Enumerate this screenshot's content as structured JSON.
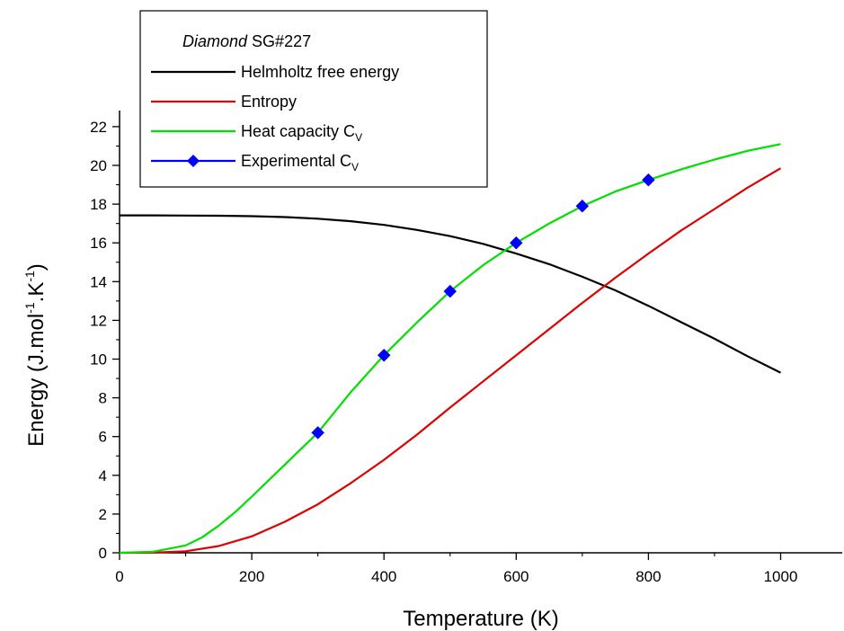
{
  "chart_data": {
    "type": "line",
    "xlabel": "Temperature (K)",
    "ylabel": {
      "main": "Energy (J.mol",
      "sup1": "-1",
      "mid": ".K",
      "sup2": "-1",
      "end": ")"
    },
    "xlim": [
      0,
      1100
    ],
    "ylim": [
      0,
      22.5
    ],
    "x_ticks": [
      "0",
      "200",
      "400",
      "600",
      "800",
      "1000"
    ],
    "y_ticks": [
      "0",
      "2",
      "4",
      "6",
      "8",
      "10",
      "12",
      "14",
      "16",
      "18",
      "20",
      "22"
    ],
    "grid": false,
    "legend": {
      "position": "top-left",
      "title_italic": "Diamond",
      "title_rest": " SG#227",
      "entries": [
        {
          "label": "Helmholtz free energy",
          "sub": ""
        },
        {
          "label": "Entropy",
          "sub": ""
        },
        {
          "label": "Heat capacity C",
          "sub": "V"
        },
        {
          "label": "Experimental  C",
          "sub": "V"
        }
      ]
    },
    "series": [
      {
        "name": "Helmholtz free energy",
        "color": "#000000",
        "marker": "none",
        "x": [
          0,
          50,
          100,
          150,
          200,
          250,
          300,
          350,
          400,
          450,
          500,
          550,
          600,
          650,
          700,
          750,
          800,
          850,
          900,
          950,
          1000
        ],
        "y": [
          17.42,
          17.42,
          17.41,
          17.4,
          17.38,
          17.33,
          17.25,
          17.12,
          16.93,
          16.67,
          16.35,
          15.95,
          15.45,
          14.9,
          14.25,
          13.55,
          12.75,
          11.9,
          11.05,
          10.15,
          9.3
        ]
      },
      {
        "name": "Entropy",
        "color": "#e00000",
        "marker": "none",
        "x": [
          0,
          50,
          100,
          150,
          200,
          250,
          300,
          350,
          400,
          450,
          500,
          550,
          600,
          650,
          700,
          750,
          800,
          850,
          900,
          950,
          1000
        ],
        "y": [
          0,
          0.01,
          0.08,
          0.35,
          0.85,
          1.6,
          2.5,
          3.6,
          4.8,
          6.1,
          7.5,
          8.85,
          10.2,
          11.55,
          12.9,
          14.2,
          15.45,
          16.65,
          17.75,
          18.85,
          19.85
        ]
      },
      {
        "name": "Heat capacity C_V",
        "color": "#00e000",
        "marker": "none",
        "x": [
          0,
          50,
          100,
          125,
          150,
          175,
          200,
          250,
          300,
          350,
          400,
          450,
          500,
          550,
          600,
          650,
          700,
          750,
          800,
          850,
          900,
          950,
          1000
        ],
        "y": [
          0,
          0.05,
          0.38,
          0.8,
          1.4,
          2.1,
          2.9,
          4.55,
          6.2,
          8.3,
          10.2,
          11.9,
          13.5,
          14.85,
          16.0,
          17.0,
          17.9,
          18.65,
          19.25,
          19.8,
          20.3,
          20.75,
          21.1
        ]
      },
      {
        "name": "Experimental C_V",
        "color": "#0000ff",
        "marker": "diamond",
        "x": [
          300,
          400,
          500,
          600,
          700,
          800
        ],
        "y": [
          6.2,
          10.2,
          13.5,
          16.0,
          17.9,
          19.25
        ]
      }
    ]
  }
}
